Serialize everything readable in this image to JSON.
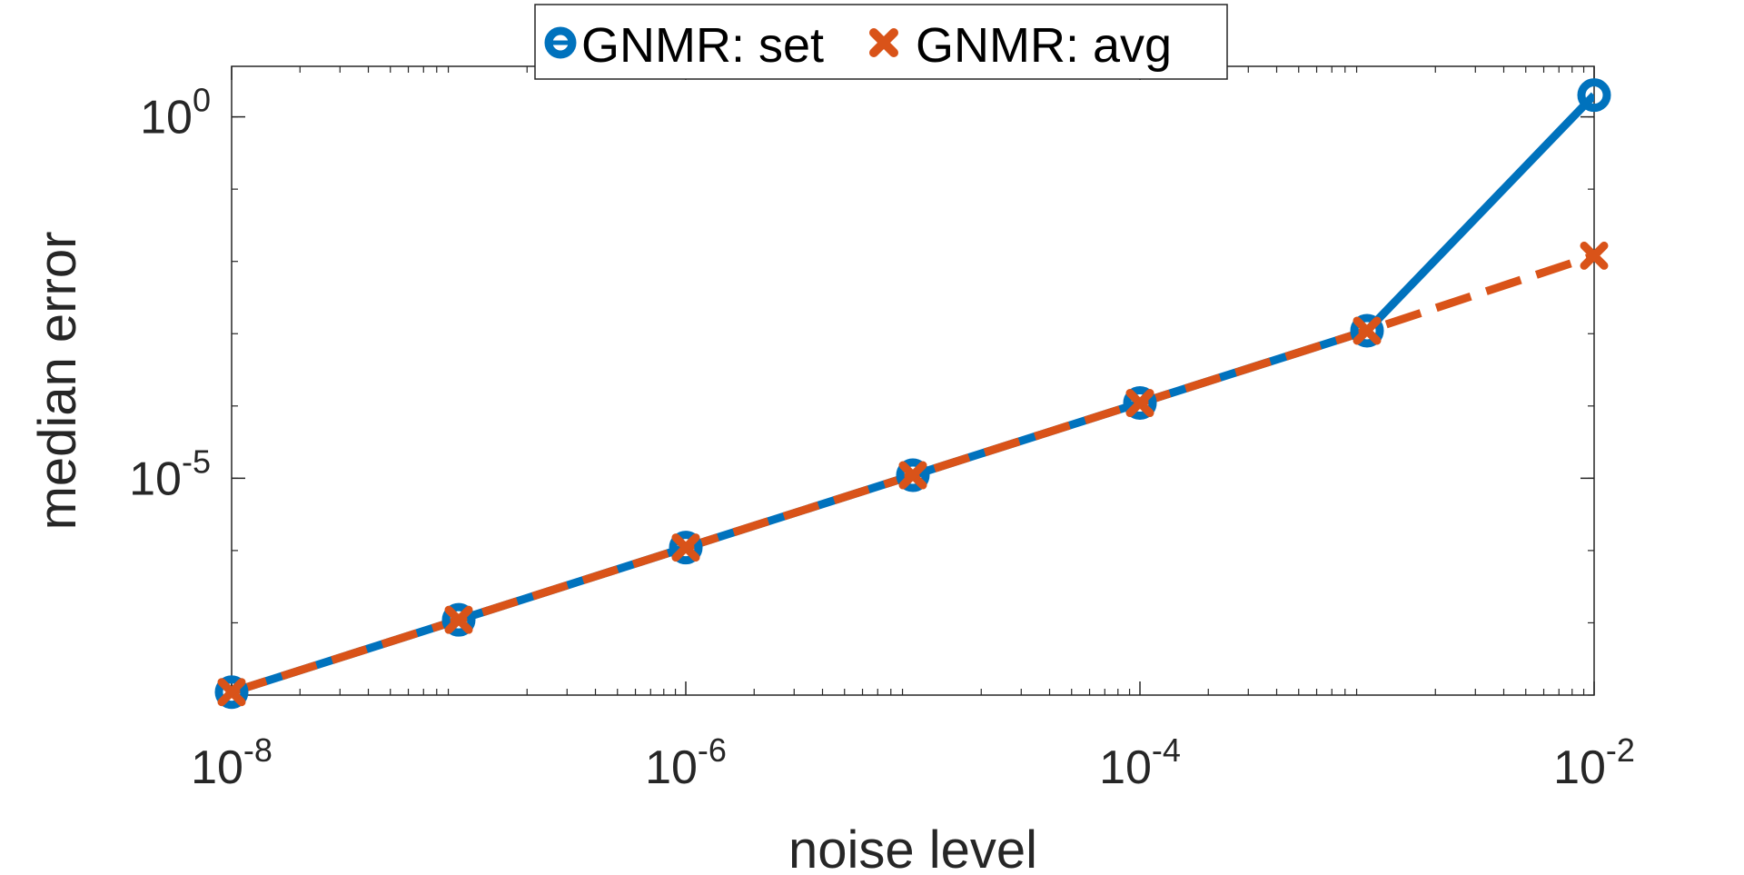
{
  "chart_data": {
    "type": "line",
    "x_scale": "log",
    "y_scale": "log",
    "xlabel": "noise level",
    "ylabel": "median error",
    "xlim": [
      1e-08,
      0.01
    ],
    "ylim": [
      1e-08,
      5
    ],
    "x": [
      1e-08,
      1e-07,
      1e-06,
      1e-05,
      0.0001,
      0.001,
      0.01
    ],
    "x_ticks": [
      {
        "base": "10",
        "exp": "-8",
        "value": 1e-08
      },
      {
        "base": "10",
        "exp": "-6",
        "value": 1e-06
      },
      {
        "base": "10",
        "exp": "-4",
        "value": 0.0001
      },
      {
        "base": "10",
        "exp": "-2",
        "value": 0.01
      }
    ],
    "y_ticks": [
      {
        "base": "10",
        "exp": "-5",
        "value": 1e-05
      },
      {
        "base": "10",
        "exp": "0",
        "value": 1
      }
    ],
    "series": [
      {
        "name": "GNMR: set",
        "color": "#0072BD",
        "line_style": "solid",
        "marker": "circle",
        "values": [
          1.1e-08,
          1.1e-07,
          1.1e-06,
          1.1e-05,
          0.00011,
          0.0011,
          2.0
        ]
      },
      {
        "name": "GNMR: avg",
        "color": "#D95319",
        "line_style": "dashed",
        "marker": "x",
        "values": [
          1.1e-08,
          1.1e-07,
          1.1e-06,
          1.1e-05,
          0.00011,
          0.0011,
          0.012
        ]
      }
    ],
    "legend_position": "top-center",
    "grid": false
  }
}
